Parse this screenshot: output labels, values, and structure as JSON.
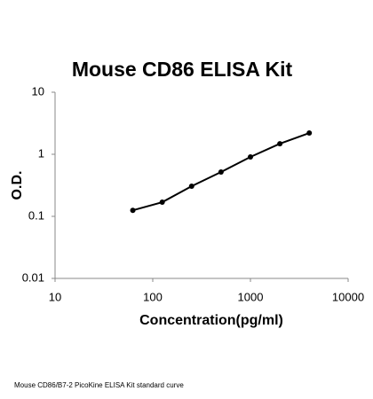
{
  "chart_data": {
    "type": "scatter",
    "title": "Mouse CD86 ELISA Kit",
    "x_label": "Concentration(pg/ml)",
    "y_label": "O.D.",
    "caption": "Mouse CD86/B7-2 PicoKine ELISA Kit standard curve",
    "x_scale": "log",
    "y_scale": "log",
    "xlim": [
      10,
      10000
    ],
    "ylim": [
      0.01,
      10
    ],
    "xticks": [
      10,
      100,
      1000,
      10000
    ],
    "yticks": [
      0.01,
      0.1,
      1,
      10
    ],
    "line": true,
    "color": "#000000",
    "x": [
      62.5,
      125,
      250,
      500,
      1000,
      2000,
      4000
    ],
    "values": [
      0.125,
      0.169,
      0.306,
      0.518,
      0.906,
      1.48,
      2.2
    ]
  }
}
